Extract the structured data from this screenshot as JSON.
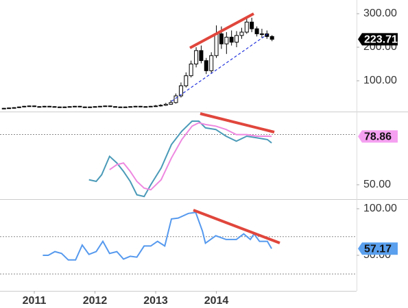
{
  "chart_data": [
    {
      "type": "candlestick",
      "x": [
        2010.5,
        2010.583,
        2010.667,
        2010.75,
        2010.833,
        2010.917,
        2011,
        2011.083,
        2011.167,
        2011.25,
        2011.333,
        2011.417,
        2011.5,
        2011.583,
        2011.667,
        2011.75,
        2011.833,
        2011.917,
        2012,
        2012.083,
        2012.167,
        2012.25,
        2012.333,
        2012.417,
        2012.5,
        2012.583,
        2012.667,
        2012.75,
        2012.833,
        2012.917,
        2013,
        2013.083,
        2013.167,
        2013.25,
        2013.333,
        2013.417,
        2013.5,
        2013.583,
        2013.667,
        2013.75,
        2013.833,
        2013.917,
        2014,
        2014.083,
        2014.167,
        2014.25,
        2014.333,
        2014.417,
        2014.5,
        2014.583,
        2014.667,
        2014.75,
        2014.833,
        2014.917
      ],
      "open": [
        17,
        18,
        19,
        20,
        22,
        24,
        25,
        23,
        22,
        24,
        23,
        22,
        21,
        22,
        23,
        24,
        22,
        21,
        22,
        23,
        24,
        25,
        23,
        22,
        21,
        22,
        23,
        24,
        22,
        23,
        24,
        25,
        27,
        30,
        35,
        55,
        85,
        115,
        150,
        190,
        160,
        130,
        175,
        240,
        210,
        230,
        215,
        235,
        245,
        275,
        255,
        240,
        240,
        232
      ],
      "high": [
        19,
        20,
        21,
        23,
        25,
        26,
        26,
        24,
        25,
        25,
        24,
        23,
        23,
        24,
        25,
        25,
        23,
        23,
        24,
        25,
        26,
        26,
        24,
        23,
        23,
        24,
        25,
        25,
        24,
        25,
        28,
        30,
        34,
        42,
        62,
        95,
        125,
        160,
        200,
        205,
        168,
        185,
        265,
        262,
        245,
        250,
        248,
        258,
        292,
        288,
        262,
        255,
        250,
        236
      ],
      "low": [
        16,
        17,
        18,
        19,
        21,
        23,
        22,
        21,
        21,
        22,
        21,
        20,
        20,
        21,
        22,
        21,
        20,
        20,
        21,
        22,
        23,
        22,
        21,
        20,
        20,
        21,
        22,
        21,
        21,
        22,
        22,
        23,
        25,
        28,
        32,
        50,
        80,
        110,
        140,
        152,
        120,
        122,
        168,
        195,
        180,
        205,
        200,
        225,
        240,
        245,
        232,
        228,
        225,
        218
      ],
      "close": [
        18,
        19,
        20,
        22,
        24,
        25,
        23,
        22,
        24,
        23,
        22,
        21,
        22,
        23,
        24,
        22,
        21,
        22,
        23,
        24,
        25,
        23,
        22,
        21,
        22,
        23,
        24,
        22,
        23,
        24,
        25,
        27,
        30,
        35,
        55,
        85,
        115,
        150,
        190,
        160,
        130,
        175,
        240,
        210,
        230,
        215,
        235,
        245,
        275,
        255,
        240,
        240,
        232,
        223.71
      ],
      "up_color": "#ffffff",
      "down_color": "#000000",
      "last_value": 223.71,
      "tag_color": "#000000",
      "xlim": [
        2010.435,
        2016.31
      ],
      "ylim": [
        8.2,
        340.8
      ],
      "yticks": [
        {
          "value": 100,
          "label": "100.00"
        },
        {
          "value": 200,
          "label": "200.00"
        },
        {
          "value": 300,
          "label": "300.00"
        }
      ]
    },
    {
      "type": "line",
      "x": [
        2011.9,
        2012.02,
        2012.11,
        2012.24,
        2012.36,
        2012.47,
        2012.58,
        2012.69,
        2012.81,
        2012.92,
        2013.09,
        2013.26,
        2013.43,
        2013.6,
        2013.71,
        2013.82,
        2013.99,
        2014.16,
        2014.33,
        2014.5,
        2014.67,
        2014.84,
        2014.91
      ],
      "series": [
        {
          "color": "#4a9ab8",
          "values": [
            53,
            52,
            56,
            67,
            63,
            58,
            52,
            44,
            43,
            50,
            60,
            74,
            82,
            88,
            88,
            84,
            83,
            79,
            76,
            79,
            78,
            77,
            75
          ]
        },
        {
          "color": "#ee88e0",
          "values": [
            null,
            null,
            null,
            59,
            62,
            63,
            58,
            52,
            48,
            47,
            53,
            66,
            77,
            85,
            87,
            86,
            85,
            83,
            80,
            80,
            79,
            79,
            78.86
          ]
        }
      ],
      "last_value": 78.86,
      "tag_color": "#f5a0f0",
      "hlines": [
        80
      ],
      "xlim": [
        2010.435,
        2016.31
      ],
      "ylim": [
        41.8,
        92.9
      ],
      "yticks": [
        {
          "value": 50,
          "label": "50.00"
        }
      ]
    },
    {
      "type": "line",
      "x": [
        2011.14,
        2011.23,
        2011.34,
        2011.45,
        2011.56,
        2011.68,
        2011.79,
        2011.9,
        2012.02,
        2012.13,
        2012.24,
        2012.36,
        2012.47,
        2012.58,
        2012.69,
        2012.81,
        2012.92,
        2013.03,
        2013.15,
        2013.26,
        2013.37,
        2013.54,
        2013.66,
        2013.77,
        2013.82,
        2013.99,
        2014.16,
        2014.33,
        2014.45,
        2014.56,
        2014.62,
        2014.71,
        2014.84,
        2014.91
      ],
      "series": [
        {
          "color": "#5599ee",
          "values": [
            50,
            50,
            54,
            52,
            45,
            45,
            61,
            51,
            54,
            65,
            52,
            54,
            46,
            49,
            48,
            60,
            60,
            65,
            60,
            89,
            90,
            95,
            96,
            76,
            63,
            71,
            67,
            67,
            73,
            67,
            73,
            65,
            65,
            57.17
          ]
        }
      ],
      "last_value": 57.17,
      "tag_color": "#5aa0ee",
      "hlines": [
        70,
        30
      ],
      "xlim": [
        2010.435,
        2016.31
      ],
      "ylim": [
        11.8,
        108.8
      ],
      "yticks": [
        {
          "value": 50,
          "label": "50.00"
        },
        {
          "value": 100,
          "label": "100.00"
        }
      ],
      "xticks": [
        2011,
        2012,
        2013,
        2014
      ]
    }
  ]
}
